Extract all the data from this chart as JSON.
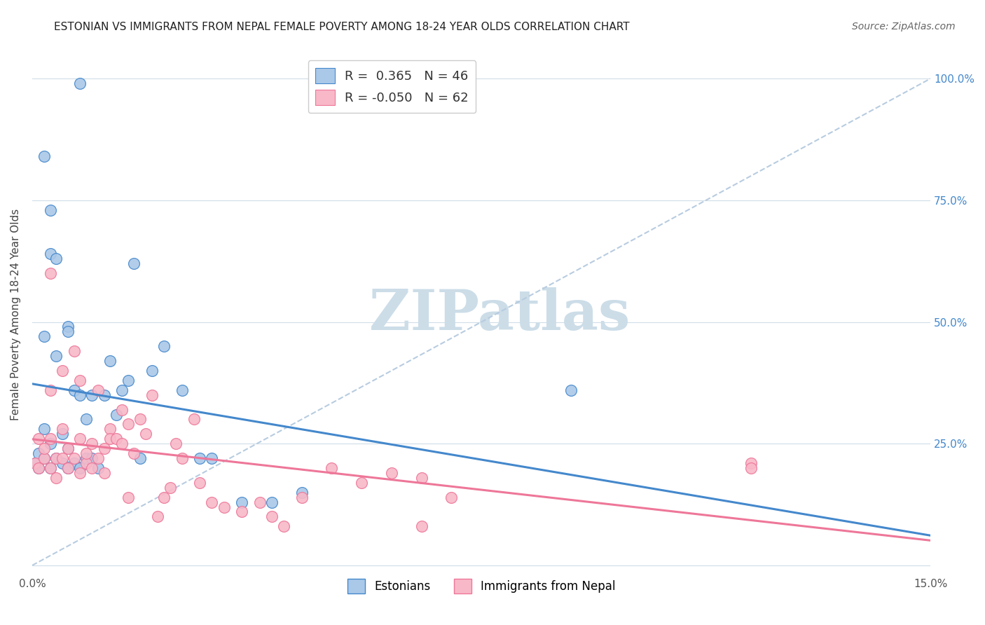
{
  "title": "ESTONIAN VS IMMIGRANTS FROM NEPAL FEMALE POVERTY AMONG 18-24 YEAR OLDS CORRELATION CHART",
  "source": "Source: ZipAtlas.com",
  "ylabel": "Female Poverty Among 18-24 Year Olds",
  "xlim": [
    0.0,
    0.15
  ],
  "ylim": [
    -0.02,
    1.05
  ],
  "legend_blue_r": "0.365",
  "legend_blue_n": "46",
  "legend_pink_r": "-0.050",
  "legend_pink_n": "62",
  "blue_color": "#aac8e8",
  "pink_color": "#f8b8c8",
  "blue_line_color": "#4488cc",
  "pink_line_color": "#ee7799",
  "dashed_line_color": "#b8cce0",
  "watermark": "ZIPatlas",
  "watermark_color": "#ccdde8",
  "grid_color": "#d0dde8",
  "background_color": "#ffffff",
  "blue_scatter_x": [
    0.0005,
    0.001,
    0.001,
    0.002,
    0.002,
    0.002,
    0.003,
    0.003,
    0.003,
    0.004,
    0.004,
    0.005,
    0.005,
    0.006,
    0.006,
    0.006,
    0.007,
    0.007,
    0.008,
    0.008,
    0.009,
    0.009,
    0.01,
    0.01,
    0.011,
    0.012,
    0.013,
    0.014,
    0.015,
    0.016,
    0.017,
    0.018,
    0.02,
    0.022,
    0.025,
    0.028,
    0.03,
    0.035,
    0.04,
    0.045,
    0.002,
    0.003,
    0.004,
    0.006,
    0.008,
    0.09
  ],
  "blue_scatter_y": [
    0.21,
    0.2,
    0.23,
    0.22,
    0.28,
    0.47,
    0.2,
    0.25,
    0.64,
    0.22,
    0.43,
    0.21,
    0.27,
    0.2,
    0.24,
    0.49,
    0.21,
    0.36,
    0.2,
    0.35,
    0.22,
    0.3,
    0.22,
    0.35,
    0.2,
    0.35,
    0.42,
    0.31,
    0.36,
    0.38,
    0.62,
    0.22,
    0.4,
    0.45,
    0.36,
    0.22,
    0.22,
    0.13,
    0.13,
    0.15,
    0.84,
    0.73,
    0.63,
    0.48,
    0.99,
    0.36
  ],
  "pink_scatter_x": [
    0.0005,
    0.001,
    0.001,
    0.002,
    0.002,
    0.003,
    0.003,
    0.003,
    0.004,
    0.004,
    0.005,
    0.005,
    0.005,
    0.006,
    0.006,
    0.007,
    0.007,
    0.008,
    0.008,
    0.008,
    0.009,
    0.009,
    0.01,
    0.01,
    0.011,
    0.011,
    0.012,
    0.012,
    0.013,
    0.013,
    0.014,
    0.015,
    0.015,
    0.016,
    0.016,
    0.017,
    0.018,
    0.019,
    0.02,
    0.021,
    0.022,
    0.023,
    0.024,
    0.025,
    0.027,
    0.028,
    0.03,
    0.032,
    0.035,
    0.038,
    0.04,
    0.042,
    0.045,
    0.05,
    0.055,
    0.06,
    0.065,
    0.07,
    0.065,
    0.12,
    0.003,
    0.12
  ],
  "pink_scatter_y": [
    0.21,
    0.2,
    0.26,
    0.22,
    0.24,
    0.2,
    0.26,
    0.6,
    0.22,
    0.18,
    0.22,
    0.28,
    0.4,
    0.2,
    0.24,
    0.22,
    0.44,
    0.19,
    0.26,
    0.38,
    0.21,
    0.23,
    0.2,
    0.25,
    0.22,
    0.36,
    0.19,
    0.24,
    0.28,
    0.26,
    0.26,
    0.25,
    0.32,
    0.29,
    0.14,
    0.23,
    0.3,
    0.27,
    0.35,
    0.1,
    0.14,
    0.16,
    0.25,
    0.22,
    0.3,
    0.17,
    0.13,
    0.12,
    0.11,
    0.13,
    0.1,
    0.08,
    0.14,
    0.2,
    0.17,
    0.19,
    0.08,
    0.14,
    0.18,
    0.21,
    0.36,
    0.2
  ]
}
